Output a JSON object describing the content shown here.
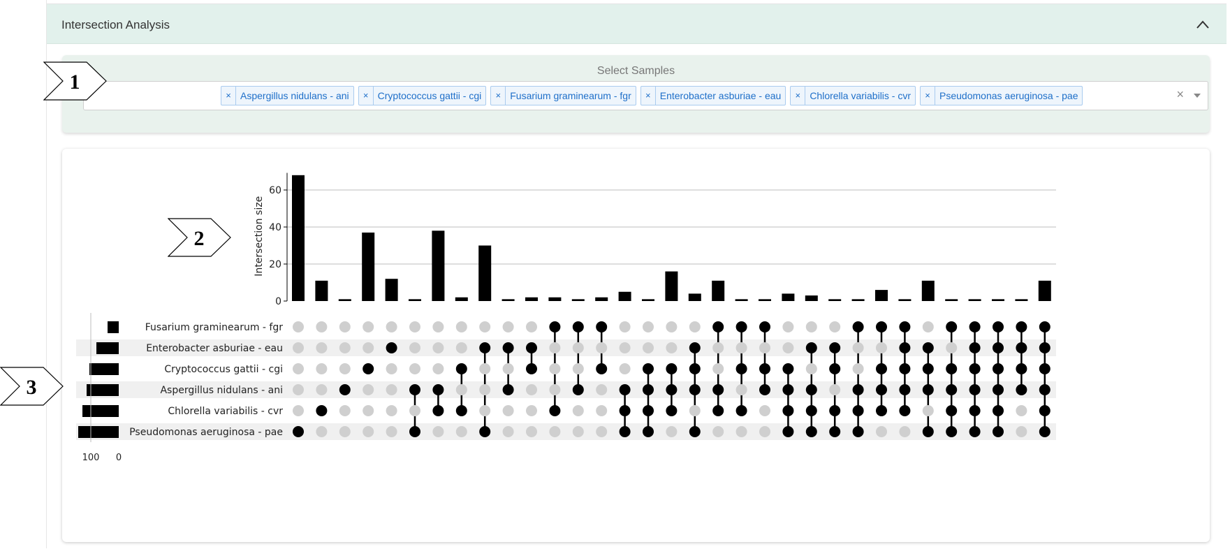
{
  "panel": {
    "title": "Intersection Analysis",
    "collapse_icon": "chevron-up-icon"
  },
  "sample_selector": {
    "label": "Select Samples",
    "remove_symbol": "×",
    "selected": [
      "Aspergillus nidulans - ani",
      "Cryptococcus gattii - cgi",
      "Fusarium graminearum - fgr",
      "Enterobacter asburiae - eau",
      "Chlorella variabilis - cvr",
      "Pseudomonas aeruginosa - pae"
    ],
    "clear_icon": "×",
    "dropdown_icon": "caret-down-icon"
  },
  "callouts": [
    "1",
    "2",
    "3"
  ],
  "chart_data": {
    "type": "upset",
    "ylabel": "Intersection size",
    "yticks": [
      0,
      20,
      40,
      60
    ],
    "ylim": [
      0,
      70
    ],
    "set_size_ticks": [
      "100",
      "0"
    ],
    "set_size_range": [
      0,
      140
    ],
    "sets": [
      "Fusarium graminearum - fgr",
      "Enterobacter asburiae - eau",
      "Cryptococcus gattii - cgi",
      "Aspergillus nidulans - ani",
      "Chlorella variabilis - cvr",
      "Pseudomonas aeruginosa - pae"
    ],
    "set_sizes": [
      40,
      80,
      105,
      115,
      130,
      145
    ],
    "intersection_sizes": [
      68,
      11,
      1,
      37,
      12,
      1,
      38,
      2,
      30,
      1,
      2,
      2,
      1,
      2,
      5,
      1,
      16,
      4,
      11,
      1,
      1,
      4,
      3,
      1,
      1,
      6,
      1,
      11,
      1,
      1,
      1,
      1,
      11
    ],
    "memberships": [
      [
        "pae"
      ],
      [
        "cvr"
      ],
      [
        "ani"
      ],
      [
        "cgi"
      ],
      [
        "eau"
      ],
      [
        "ani",
        "pae"
      ],
      [
        "ani",
        "cvr"
      ],
      [
        "cgi",
        "cvr"
      ],
      [
        "eau",
        "pae"
      ],
      [
        "eau",
        "ani"
      ],
      [
        "eau",
        "cgi"
      ],
      [
        "fgr",
        "cvr"
      ],
      [
        "fgr",
        "ani"
      ],
      [
        "fgr",
        "cgi"
      ],
      [
        "ani",
        "cvr",
        "pae"
      ],
      [
        "cgi",
        "ani",
        "cvr",
        "pae"
      ],
      [
        "cgi",
        "ani",
        "cvr"
      ],
      [
        "eau",
        "cgi",
        "ani",
        "pae"
      ],
      [
        "fgr",
        "ani",
        "cvr"
      ],
      [
        "fgr",
        "cgi",
        "cvr"
      ],
      [
        "fgr",
        "cgi",
        "ani"
      ],
      [
        "cgi",
        "ani",
        "cvr",
        "pae"
      ],
      [
        "eau",
        "ani",
        "cvr",
        "pae"
      ],
      [
        "eau",
        "cgi",
        "cvr",
        "pae"
      ],
      [
        "fgr",
        "ani",
        "cvr",
        "pae"
      ],
      [
        "fgr",
        "cgi",
        "ani",
        "cvr"
      ],
      [
        "fgr",
        "eau",
        "cgi",
        "ani",
        "cvr"
      ],
      [
        "eau",
        "cgi",
        "ani",
        "pae"
      ],
      [
        "fgr",
        "cgi",
        "ani",
        "cvr",
        "pae"
      ],
      [
        "fgr",
        "eau",
        "cgi",
        "ani",
        "cvr",
        "pae"
      ],
      [
        "fgr",
        "eau",
        "cgi",
        "ani",
        "cvr",
        "pae"
      ],
      [
        "fgr",
        "eau",
        "cgi",
        "ani"
      ],
      [
        "fgr",
        "eau",
        "cgi",
        "ani",
        "cvr",
        "pae"
      ]
    ],
    "bar_color": "#000000",
    "dot_inactive_color": "#cfcfcf",
    "stripe_color": "#f0f0f0",
    "grid": true
  }
}
